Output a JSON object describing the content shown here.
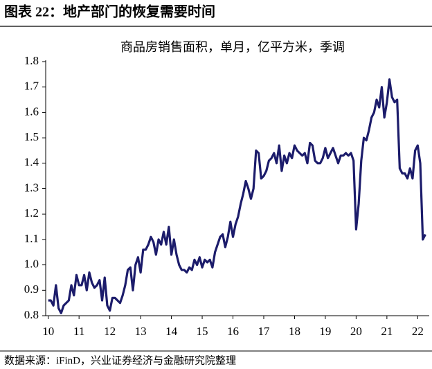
{
  "header": "图表 22：地产部门的恢复需要时间",
  "source": "数据来源：iFinD，兴业证券经济与金融研究院整理",
  "chart_data": {
    "type": "line",
    "title": "商品房销售面积，单月，亿平方米，季调",
    "x": [
      0,
      1,
      2,
      3,
      4,
      5,
      6,
      7,
      8,
      9,
      10,
      11,
      12,
      13,
      14,
      15,
      16,
      17,
      18,
      19,
      20,
      21,
      22,
      23,
      24,
      25,
      26,
      27,
      28,
      29,
      30,
      31,
      32,
      33,
      34,
      35,
      36,
      37,
      38,
      39,
      40,
      41,
      42,
      43,
      44,
      45,
      46,
      47,
      48,
      49,
      50,
      51,
      52,
      53,
      54,
      55,
      56,
      57,
      58,
      59,
      60,
      61,
      62,
      63,
      64,
      65,
      66,
      67,
      68,
      69,
      70,
      71,
      72,
      73,
      74,
      75,
      76,
      77,
      78,
      79,
      80,
      81,
      82,
      83,
      84,
      85,
      86,
      87,
      88,
      89,
      90,
      91,
      92,
      93,
      94,
      95,
      96,
      97,
      98,
      99,
      100,
      101,
      102,
      103,
      104,
      105,
      106,
      107,
      108,
      109,
      110,
      111,
      112,
      113,
      114,
      115,
      116,
      117,
      118,
      119,
      120,
      121,
      122,
      123,
      124,
      125,
      126,
      127,
      128,
      129,
      130,
      131,
      132,
      133,
      134,
      135,
      136,
      137,
      138,
      139,
      140,
      141,
      142,
      143,
      144,
      145,
      146,
      147
    ],
    "series": [
      {
        "color": "#1c1c6b",
        "values": [
          0.86,
          0.86,
          0.84,
          0.92,
          0.83,
          0.81,
          0.84,
          0.85,
          0.86,
          0.92,
          0.88,
          0.96,
          0.92,
          0.92,
          0.96,
          0.9,
          0.97,
          0.93,
          0.91,
          0.92,
          0.94,
          0.86,
          0.95,
          0.84,
          0.82,
          0.87,
          0.87,
          0.86,
          0.85,
          0.88,
          0.92,
          0.98,
          0.99,
          0.9,
          1.0,
          1.03,
          0.97,
          1.06,
          1.06,
          1.08,
          1.11,
          1.09,
          1.04,
          1.1,
          1.08,
          1.13,
          1.08,
          1.15,
          1.04,
          1.1,
          1.04,
          1.0,
          0.98,
          0.98,
          0.97,
          0.99,
          0.98,
          1.02,
          1.0,
          1.03,
          0.99,
          1.02,
          1.01,
          1.02,
          0.99,
          1.05,
          1.08,
          1.11,
          1.12,
          1.07,
          1.11,
          1.17,
          1.11,
          1.16,
          1.19,
          1.24,
          1.28,
          1.33,
          1.3,
          1.26,
          1.3,
          1.45,
          1.44,
          1.34,
          1.35,
          1.37,
          1.41,
          1.42,
          1.44,
          1.4,
          1.47,
          1.37,
          1.43,
          1.4,
          1.44,
          1.42,
          1.47,
          1.45,
          1.44,
          1.43,
          1.44,
          1.4,
          1.48,
          1.47,
          1.41,
          1.4,
          1.4,
          1.42,
          1.46,
          1.42,
          1.44,
          1.46,
          1.43,
          1.4,
          1.43,
          1.43,
          1.44,
          1.43,
          1.44,
          1.41,
          1.14,
          1.24,
          1.41,
          1.5,
          1.49,
          1.53,
          1.58,
          1.6,
          1.65,
          1.62,
          1.7,
          1.58,
          1.64,
          1.73,
          1.66,
          1.64,
          1.65,
          1.38,
          1.36,
          1.36,
          1.34,
          1.38,
          1.34,
          1.45,
          1.47,
          1.4,
          1.1,
          1.12
        ]
      }
    ],
    "xlim": [
      -1,
      148.5
    ],
    "xticks": [
      {
        "value": 0,
        "label": "10"
      },
      {
        "value": 12,
        "label": "11"
      },
      {
        "value": 24,
        "label": "12"
      },
      {
        "value": 36,
        "label": "13"
      },
      {
        "value": 48,
        "label": "14"
      },
      {
        "value": 60,
        "label": "15"
      },
      {
        "value": 72,
        "label": "16"
      },
      {
        "value": 84,
        "label": "17"
      },
      {
        "value": 96,
        "label": "18"
      },
      {
        "value": 108,
        "label": "19"
      },
      {
        "value": 120,
        "label": "20"
      },
      {
        "value": 132,
        "label": "21"
      },
      {
        "value": 144,
        "label": "22"
      }
    ],
    "ylim": [
      0.8,
      1.8
    ],
    "yticks": [
      {
        "value": 0.8,
        "label": "0.8"
      },
      {
        "value": 0.9,
        "label": "0.9"
      },
      {
        "value": 1.0,
        "label": "1.0"
      },
      {
        "value": 1.1,
        "label": "1.1"
      },
      {
        "value": 1.2,
        "label": "1.2"
      },
      {
        "value": 1.3,
        "label": "1.3"
      },
      {
        "value": 1.4,
        "label": "1.4"
      },
      {
        "value": 1.5,
        "label": "1.5"
      },
      {
        "value": 1.6,
        "label": "1.6"
      },
      {
        "value": 1.7,
        "label": "1.7"
      },
      {
        "value": 1.8,
        "label": "1.8"
      }
    ],
    "grid": false
  }
}
